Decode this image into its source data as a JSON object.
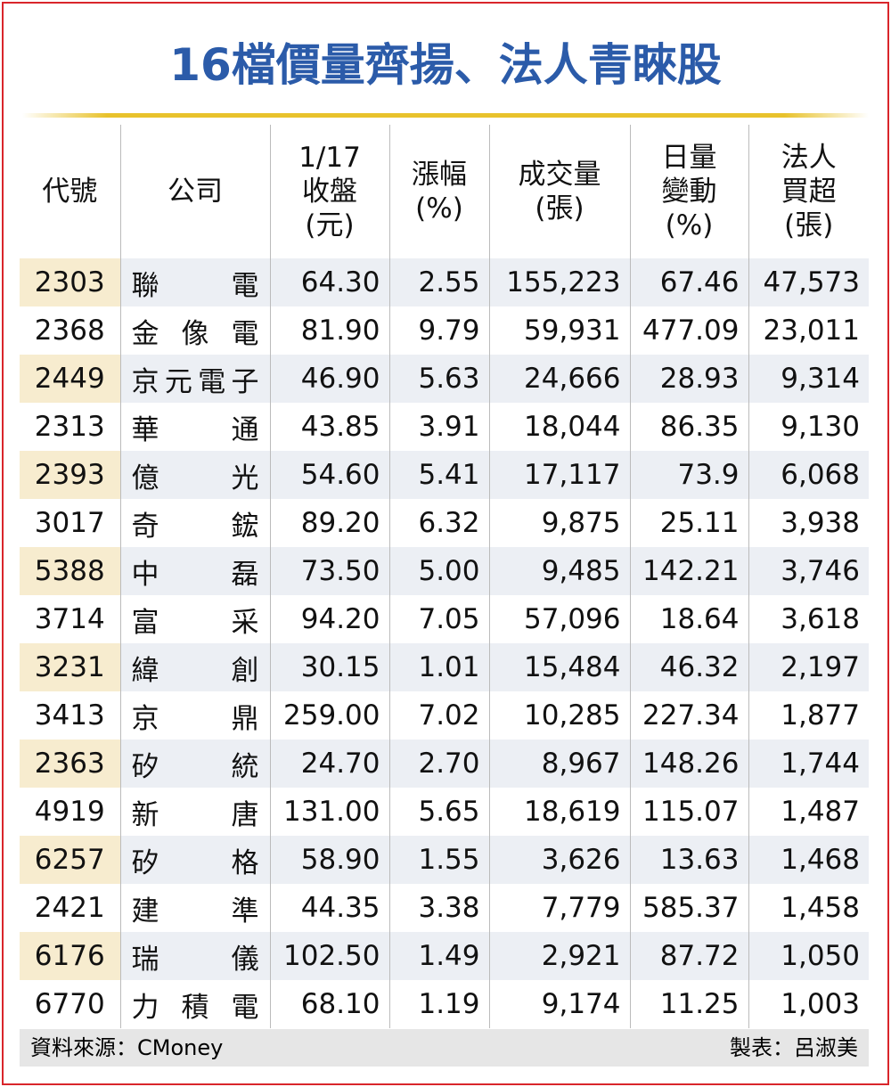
{
  "title": "16檔價量齊揚、法人青睞股",
  "table": {
    "header": [
      [
        "代號"
      ],
      [
        "公司"
      ],
      [
        "1/17",
        "收盤",
        "(元)"
      ],
      [
        "漲幅",
        "(%)"
      ],
      [
        "成交量",
        "(張)"
      ],
      [
        "日量",
        "變動",
        "(%)"
      ],
      [
        "法人",
        "買超",
        "(張)"
      ]
    ],
    "rows": [
      [
        "2303",
        "聯電",
        "64.30",
        "2.55",
        "155,223",
        "67.46",
        "47,573"
      ],
      [
        "2368",
        "金像電",
        "81.90",
        "9.79",
        "59,931",
        "477.09",
        "23,011"
      ],
      [
        "2449",
        "京元電子",
        "46.90",
        "5.63",
        "24,666",
        "28.93",
        "9,314"
      ],
      [
        "2313",
        "華通",
        "43.85",
        "3.91",
        "18,044",
        "86.35",
        "9,130"
      ],
      [
        "2393",
        "億光",
        "54.60",
        "5.41",
        "17,117",
        "73.9",
        "6,068"
      ],
      [
        "3017",
        "奇鋐",
        "89.20",
        "6.32",
        "9,875",
        "25.11",
        "3,938"
      ],
      [
        "5388",
        "中磊",
        "73.50",
        "5.00",
        "9,485",
        "142.21",
        "3,746"
      ],
      [
        "3714",
        "富采",
        "94.20",
        "7.05",
        "57,096",
        "18.64",
        "3,618"
      ],
      [
        "3231",
        "緯創",
        "30.15",
        "1.01",
        "15,484",
        "46.32",
        "2,197"
      ],
      [
        "3413",
        "京鼎",
        "259.00",
        "7.02",
        "10,285",
        "227.34",
        "1,877"
      ],
      [
        "2363",
        "矽統",
        "24.70",
        "2.70",
        "8,967",
        "148.26",
        "1,744"
      ],
      [
        "4919",
        "新唐",
        "131.00",
        "5.65",
        "18,619",
        "115.07",
        "1,487"
      ],
      [
        "6257",
        "矽格",
        "58.90",
        "1.55",
        "3,626",
        "13.63",
        "1,468"
      ],
      [
        "2421",
        "建準",
        "44.35",
        "3.38",
        "7,779",
        "585.37",
        "1,458"
      ],
      [
        "6176",
        "瑞儀",
        "102.50",
        "1.49",
        "2,921",
        "87.72",
        "1,050"
      ],
      [
        "6770",
        "力積電",
        "68.10",
        "1.19",
        "9,174",
        "11.25",
        "1,003"
      ]
    ]
  },
  "footer": {
    "source": "資料來源：CMoney",
    "maker": "製表：呂淑美"
  }
}
